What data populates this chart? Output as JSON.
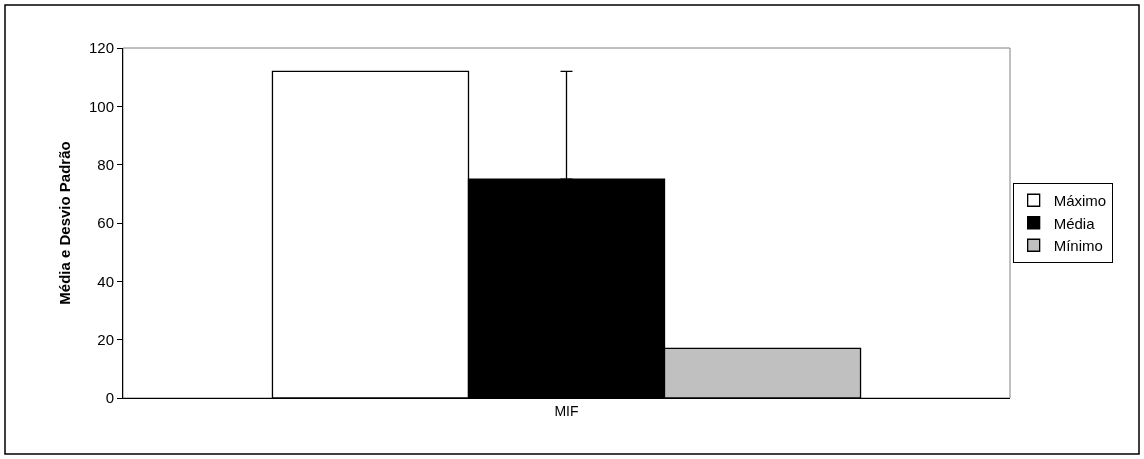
{
  "chart_data": {
    "type": "bar",
    "ylabel": "Média e Desvio Padrão",
    "categories": [
      "MIF"
    ],
    "series": [
      {
        "name": "Máximo",
        "color": "#ffffff",
        "values": [
          112
        ]
      },
      {
        "name": "Média",
        "color": "#000000",
        "values": [
          75
        ],
        "errors": [
          37
        ]
      },
      {
        "name": "Mínimo",
        "color": "#c0c0c0",
        "values": [
          17
        ]
      }
    ],
    "ylim": [
      0,
      120
    ],
    "yticks": [
      0,
      20,
      40,
      60,
      80,
      100,
      120
    ],
    "grid": false,
    "legend": "right"
  }
}
